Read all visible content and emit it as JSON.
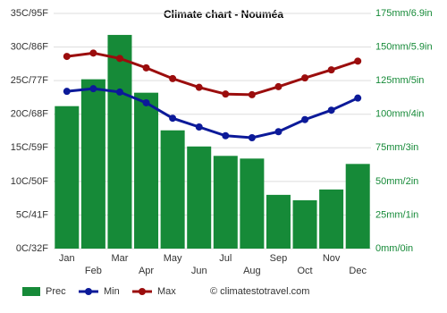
{
  "chart_data": {
    "type": "combo",
    "title": "Climate chart - Nouméa",
    "categories": [
      "Jan",
      "Feb",
      "Mar",
      "Apr",
      "May",
      "Jun",
      "Jul",
      "Aug",
      "Sep",
      "Oct",
      "Nov",
      "Dec"
    ],
    "series": [
      {
        "name": "Prec",
        "type": "bar",
        "axis": "y2",
        "color": "#168a38",
        "values": [
          106,
          126,
          159,
          116,
          88,
          76,
          69,
          67,
          40,
          36,
          44,
          63
        ]
      },
      {
        "name": "Min",
        "type": "line",
        "color": "#0c1a99",
        "values": [
          23.4,
          23.8,
          23.3,
          21.7,
          19.4,
          18.1,
          16.8,
          16.5,
          17.4,
          19.2,
          20.6,
          22.4
        ]
      },
      {
        "name": "Max",
        "type": "line",
        "color": "#9b0d0d",
        "values": [
          28.6,
          29.1,
          28.3,
          26.9,
          25.3,
          24.0,
          23.0,
          22.9,
          24.1,
          25.4,
          26.6,
          27.9
        ]
      }
    ],
    "ylim": [
      0,
      35
    ],
    "yticks": [
      {
        "value": 0,
        "label": "0C/32F"
      },
      {
        "value": 5,
        "label": "5C/41F"
      },
      {
        "value": 10,
        "label": "10C/50F"
      },
      {
        "value": 15,
        "label": "15C/59F"
      },
      {
        "value": 20,
        "label": "20C/68F"
      },
      {
        "value": 25,
        "label": "25C/77F"
      },
      {
        "value": 30,
        "label": "30C/86F"
      },
      {
        "value": 35,
        "label": "35C/95F"
      }
    ],
    "y2lim": [
      0,
      175
    ],
    "y2ticks": [
      {
        "value": 0,
        "label": "0mm/0in"
      },
      {
        "value": 25,
        "label": "25mm/1in"
      },
      {
        "value": 50,
        "label": "50mm/2in"
      },
      {
        "value": 75,
        "label": "75mm/3in"
      },
      {
        "value": 100,
        "label": "100mm/4in"
      },
      {
        "value": 125,
        "label": "125mm/5in"
      },
      {
        "value": 150,
        "label": "150mm/5.9in"
      },
      {
        "value": 175,
        "label": "175mm/6.9in"
      }
    ],
    "grid": true,
    "legend": "bottom",
    "source": "© climatestotravel.com"
  }
}
